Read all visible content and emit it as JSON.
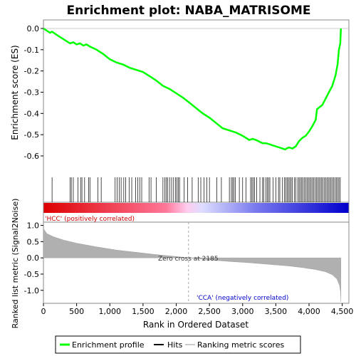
{
  "chart_data": {
    "type": "line",
    "title": "Enrichment plot: NABA_MATRISOME",
    "top_panel": {
      "ylabel": "Enrichment score (ES)",
      "ylim": [
        -0.6,
        0.0
      ],
      "yticks": [
        "0.0",
        "-0.1",
        "-0.2",
        "-0.3",
        "-0.4",
        "-0.5",
        "-0.6"
      ],
      "ytick_values": [
        0.0,
        -0.1,
        -0.2,
        -0.3,
        -0.4,
        -0.5,
        -0.6
      ],
      "series": [
        {
          "name": "Enrichment profile",
          "color": "#00ff00",
          "points": [
            [
              0,
              0.0
            ],
            [
              50,
              -0.01
            ],
            [
              100,
              -0.02
            ],
            [
              130,
              -0.015
            ],
            [
              200,
              -0.03
            ],
            [
              300,
              -0.05
            ],
            [
              400,
              -0.07
            ],
            [
              450,
              -0.065
            ],
            [
              500,
              -0.075
            ],
            [
              550,
              -0.07
            ],
            [
              600,
              -0.08
            ],
            [
              650,
              -0.075
            ],
            [
              700,
              -0.085
            ],
            [
              800,
              -0.1
            ],
            [
              900,
              -0.12
            ],
            [
              1000,
              -0.145
            ],
            [
              1100,
              -0.16
            ],
            [
              1200,
              -0.17
            ],
            [
              1300,
              -0.185
            ],
            [
              1400,
              -0.195
            ],
            [
              1500,
              -0.205
            ],
            [
              1600,
              -0.225
            ],
            [
              1700,
              -0.245
            ],
            [
              1800,
              -0.27
            ],
            [
              1900,
              -0.285
            ],
            [
              2000,
              -0.305
            ],
            [
              2100,
              -0.325
            ],
            [
              2200,
              -0.35
            ],
            [
              2300,
              -0.375
            ],
            [
              2400,
              -0.4
            ],
            [
              2500,
              -0.42
            ],
            [
              2600,
              -0.445
            ],
            [
              2700,
              -0.47
            ],
            [
              2800,
              -0.48
            ],
            [
              2900,
              -0.49
            ],
            [
              3000,
              -0.505
            ],
            [
              3100,
              -0.525
            ],
            [
              3150,
              -0.52
            ],
            [
              3200,
              -0.525
            ],
            [
              3300,
              -0.54
            ],
            [
              3350,
              -0.54
            ],
            [
              3400,
              -0.545
            ],
            [
              3500,
              -0.555
            ],
            [
              3550,
              -0.56
            ],
            [
              3600,
              -0.565
            ],
            [
              3640,
              -0.57
            ],
            [
              3660,
              -0.565
            ],
            [
              3700,
              -0.56
            ],
            [
              3750,
              -0.565
            ],
            [
              3800,
              -0.555
            ],
            [
              3850,
              -0.53
            ],
            [
              3900,
              -0.515
            ],
            [
              3950,
              -0.505
            ],
            [
              4000,
              -0.485
            ],
            [
              4050,
              -0.46
            ],
            [
              4100,
              -0.43
            ],
            [
              4120,
              -0.38
            ],
            [
              4200,
              -0.36
            ],
            [
              4250,
              -0.33
            ],
            [
              4300,
              -0.3
            ],
            [
              4350,
              -0.27
            ],
            [
              4400,
              -0.22
            ],
            [
              4430,
              -0.17
            ],
            [
              4450,
              -0.1
            ],
            [
              4470,
              -0.07
            ],
            [
              4480,
              0.0
            ]
          ]
        }
      ]
    },
    "hits_panel": {
      "hit_ranks": [
        130,
        400,
        420,
        450,
        520,
        560,
        580,
        620,
        680,
        700,
        820,
        870,
        1080,
        1110,
        1140,
        1170,
        1210,
        1240,
        1290,
        1330,
        1390,
        1420,
        1450,
        1480,
        1590,
        1620,
        1700,
        1800,
        1830,
        1850,
        1870,
        1900,
        1930,
        1960,
        1990,
        2010,
        2030,
        2050,
        2120,
        2170,
        2240,
        2330,
        2370,
        2420,
        2460,
        2500,
        2610,
        2680,
        2800,
        2830,
        2850,
        2870,
        2890,
        2950,
        3000,
        3050,
        3120,
        3140,
        3160,
        3180,
        3210,
        3260,
        3300,
        3320,
        3350,
        3370,
        3390,
        3410,
        3460,
        3500,
        3540,
        3560,
        3600,
        3630,
        3650,
        3670,
        3690,
        3710,
        3730,
        3750,
        3780,
        3800,
        3830,
        3850,
        3870,
        3890,
        3910,
        3930,
        3950,
        3970,
        3990,
        4010,
        4030,
        4050,
        4070,
        4090,
        4110,
        4130,
        4150,
        4170,
        4190,
        4210,
        4230,
        4250,
        4270,
        4290,
        4310,
        4330,
        4350,
        4370,
        4390,
        4410,
        4430,
        4450,
        4470
      ],
      "gradient": {
        "start": "#dd0000",
        "mid_pos": "#ffaadd",
        "mid_neg": "#ccccff",
        "end": "#0000cc"
      }
    },
    "bottom_panel": {
      "ylabel": "Ranked list metric (Signal2Noise)",
      "ylim": [
        -1.4,
        1.1
      ],
      "yticks": [
        "1.0",
        "0.5",
        "0.0",
        "-0.5",
        "-1.0"
      ],
      "ytick_values": [
        1.0,
        0.5,
        0.0,
        -0.5,
        -1.0
      ],
      "metric_points": [
        [
          0,
          0.9
        ],
        [
          50,
          0.75
        ],
        [
          150,
          0.65
        ],
        [
          300,
          0.55
        ],
        [
          500,
          0.45
        ],
        [
          800,
          0.34
        ],
        [
          1100,
          0.24
        ],
        [
          1400,
          0.17
        ],
        [
          1700,
          0.1
        ],
        [
          2000,
          0.04
        ],
        [
          2185,
          0.0
        ],
        [
          2500,
          -0.06
        ],
        [
          2800,
          -0.11
        ],
        [
          3100,
          -0.15
        ],
        [
          3400,
          -0.2
        ],
        [
          3700,
          -0.25
        ],
        [
          3900,
          -0.3
        ],
        [
          4100,
          -0.36
        ],
        [
          4250,
          -0.43
        ],
        [
          4350,
          -0.52
        ],
        [
          4420,
          -0.65
        ],
        [
          4460,
          -0.85
        ],
        [
          4475,
          -1.05
        ],
        [
          4480,
          -1.35
        ]
      ],
      "annotations": {
        "pos_label": "'HCC' (positively correlated)",
        "neg_label": "'CCA' (negatively correlated)",
        "zero_cross": "Zero cross at 2185",
        "zero_cross_rank": 2185
      }
    },
    "x_axis": {
      "xlabel": "Rank in Ordered Dataset",
      "xlim": [
        0,
        4600
      ],
      "xticks": [
        "0",
        "500",
        "1,000",
        "1,500",
        "2,000",
        "2,500",
        "3,000",
        "3,500",
        "4,000",
        "4,500"
      ],
      "xtick_values": [
        0,
        500,
        1000,
        1500,
        2000,
        2500,
        3000,
        3500,
        4000,
        4500
      ]
    },
    "legend": {
      "placement": "bottom",
      "items": [
        {
          "label": "Enrichment profile",
          "color": "#00ff00"
        },
        {
          "label": "Hits",
          "color": "#000000"
        },
        {
          "label": "Ranking metric scores",
          "color": "#cccccc"
        }
      ]
    }
  }
}
